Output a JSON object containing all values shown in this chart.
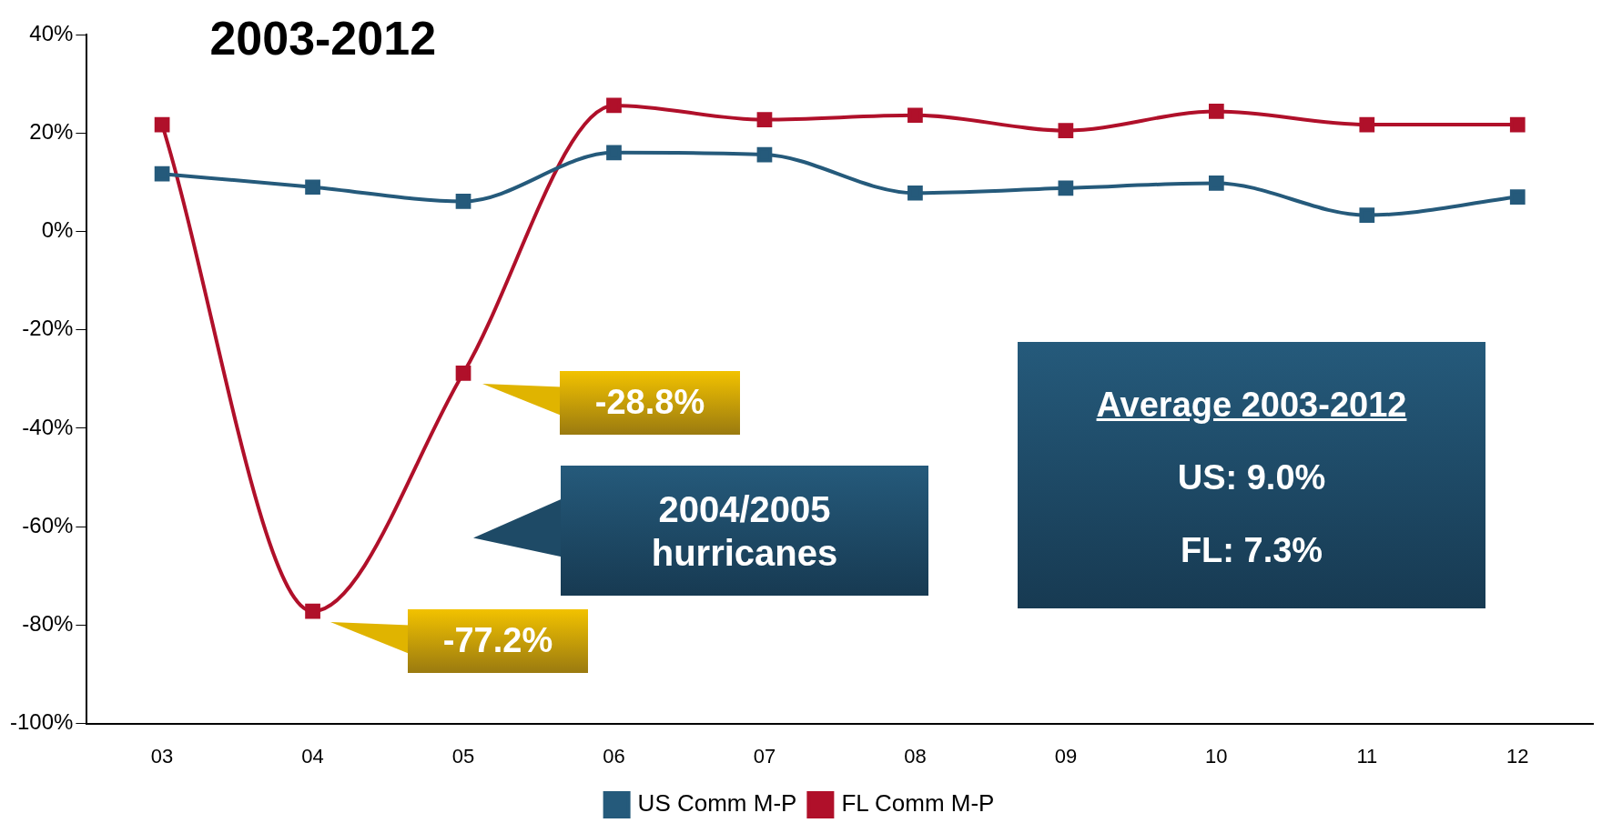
{
  "chart_data": {
    "type": "line",
    "title": "2003-2012",
    "categories": [
      "03",
      "04",
      "05",
      "06",
      "07",
      "08",
      "09",
      "10",
      "11",
      "12"
    ],
    "series": [
      {
        "name": "US Comm M-P",
        "color": "#255a7b",
        "values": [
          11.7,
          9.0,
          6.1,
          16.0,
          15.6,
          7.8,
          8.8,
          9.8,
          3.3,
          7.0
        ]
      },
      {
        "name": "FL Comm M-P",
        "color": "#b0102a",
        "values": [
          21.7,
          -77.2,
          -28.8,
          25.6,
          22.7,
          23.6,
          20.5,
          24.4,
          21.7,
          21.7
        ]
      }
    ],
    "ylim": [
      -100,
      40
    ],
    "yticks": [
      {
        "value": -100,
        "label": "-100%"
      },
      {
        "value": -80,
        "label": "-80%"
      },
      {
        "value": -60,
        "label": "-60%"
      },
      {
        "value": -40,
        "label": "-40%"
      },
      {
        "value": -20,
        "label": "-20%"
      },
      {
        "value": 0,
        "label": "0%"
      },
      {
        "value": 20,
        "label": "20%"
      },
      {
        "value": 40,
        "label": "40%"
      }
    ],
    "grid": false,
    "legend": "bottom",
    "marker": "square",
    "line_style": "solid",
    "annotations": [
      "-28.8%",
      "-77.2%",
      "2004/2005\nhurricanes",
      "Average 2003-2012",
      "US: 9.0%",
      "FL: 7.3%"
    ]
  }
}
